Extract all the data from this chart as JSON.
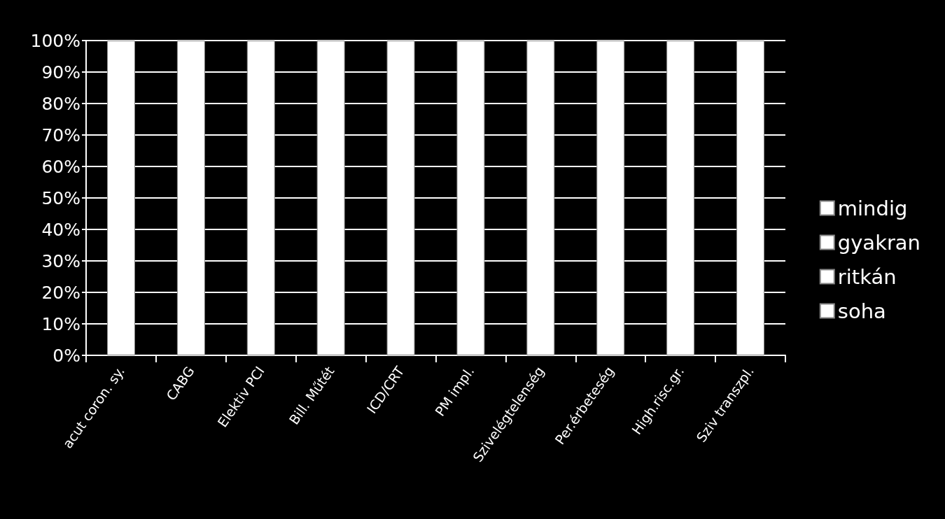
{
  "chart_data": {
    "type": "bar",
    "stacked": true,
    "categories": [
      "acut coron. sy.",
      "CABG",
      "Elektiv PCI",
      "Bill. Műtét",
      "ICD/CRT",
      "PM impl.",
      "Szivelégtelenség",
      "Per.érbeteség",
      "High.risc.gr.",
      "Sziv transzpl."
    ],
    "series": [
      {
        "name": "mindig",
        "color": "#ffffff",
        "values": [
          100,
          100,
          100,
          100,
          100,
          100,
          100,
          100,
          100,
          100
        ]
      },
      {
        "name": "gyakran",
        "color": "#ffffff",
        "values": [
          null,
          null,
          null,
          null,
          null,
          null,
          null,
          null,
          null,
          null
        ]
      },
      {
        "name": "ritkán",
        "color": "#ffffff",
        "values": [
          null,
          null,
          null,
          null,
          null,
          null,
          null,
          null,
          null,
          null
        ]
      },
      {
        "name": "soha",
        "color": "#ffffff",
        "values": [
          null,
          null,
          null,
          null,
          null,
          null,
          null,
          null,
          null,
          null
        ]
      }
    ],
    "ylim": [
      0,
      100
    ],
    "yticks": [
      {
        "value": 0,
        "label": "0%"
      },
      {
        "value": 10,
        "label": "10%"
      },
      {
        "value": 20,
        "label": "20%"
      },
      {
        "value": 30,
        "label": "30%"
      },
      {
        "value": 40,
        "label": "40%"
      },
      {
        "value": 50,
        "label": "50%"
      },
      {
        "value": 60,
        "label": "60%"
      },
      {
        "value": 70,
        "label": "70%"
      },
      {
        "value": 80,
        "label": "80%"
      },
      {
        "value": 90,
        "label": "90%"
      },
      {
        "value": 100,
        "label": "100%"
      }
    ],
    "grid": "y",
    "legend": "right"
  }
}
